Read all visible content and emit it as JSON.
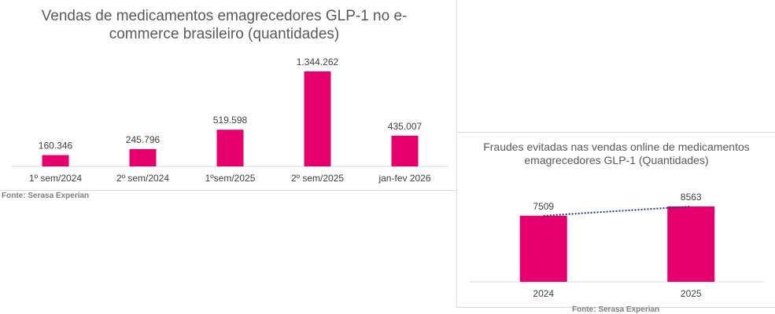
{
  "chart_data": [
    {
      "type": "bar",
      "title": "Vendas de medicamentos emagrecedores GLP-1 no e-commerce brasileiro (quantidades)",
      "categories": [
        "1º sem/2024",
        "2º sem/2024",
        "1ºsem/2025",
        "2º sem/2025",
        "jan-fev 2026"
      ],
      "values": [
        160346,
        245796,
        519598,
        1344262,
        435007
      ],
      "data_labels": [
        "160.346",
        "245.796",
        "519.598",
        "1.344.262",
        "435.007"
      ],
      "bar_color": "#E6006E",
      "source": "Fonte: Serasa Experian"
    },
    {
      "type": "bar",
      "title": "Fraudes evitadas nas vendas online de medicamentos emagrecedores GLP-1 (Quantidades)",
      "categories": [
        "2024",
        "2025"
      ],
      "values": [
        7509,
        8563
      ],
      "data_labels": [
        "7509",
        "8563"
      ],
      "bar_color": "#E6006E",
      "trendline": "linear",
      "trendline_color": "#1f3b8c",
      "source": "Fonte: Serasa Experian"
    }
  ]
}
